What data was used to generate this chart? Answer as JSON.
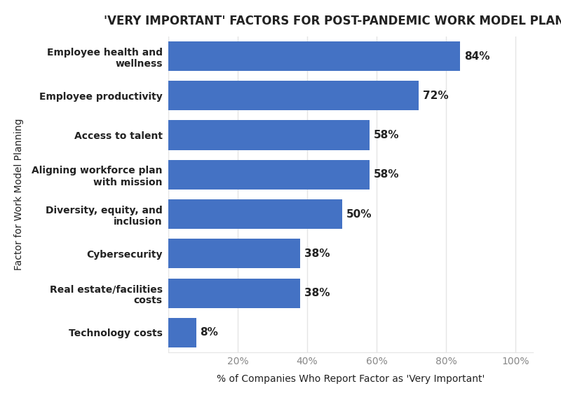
{
  "title": "'VERY IMPORTANT' FACTORS FOR POST-PANDEMIC WORK MODEL PLANNING",
  "categories": [
    "Technology costs",
    "Real estate/facilities\ncosts",
    "Cybersecurity",
    "Diversity, equity, and\ninclusion",
    "Aligning workforce plan\nwith mission",
    "Access to talent",
    "Employee productivity",
    "Employee health and\nwellness"
  ],
  "values": [
    8,
    38,
    38,
    50,
    58,
    58,
    72,
    84
  ],
  "bar_color": "#4472C4",
  "xlabel": "% of Companies Who Report Factor as 'Very Important'",
  "ylabel": "Factor for Work Model Planning",
  "xlim": [
    0,
    105
  ],
  "xticks": [
    0,
    20,
    40,
    60,
    80,
    100
  ],
  "xtick_labels": [
    "",
    "20%",
    "40%",
    "60%",
    "80%",
    "100%"
  ],
  "title_fontsize": 12,
  "label_fontsize": 10,
  "ylabel_fontsize": 10,
  "tick_fontsize": 10,
  "value_fontsize": 11,
  "bar_height": 0.75,
  "background_color": "#ffffff",
  "grid_color": "#e5e5e5",
  "text_color": "#222222",
  "tick_color": "#888888"
}
